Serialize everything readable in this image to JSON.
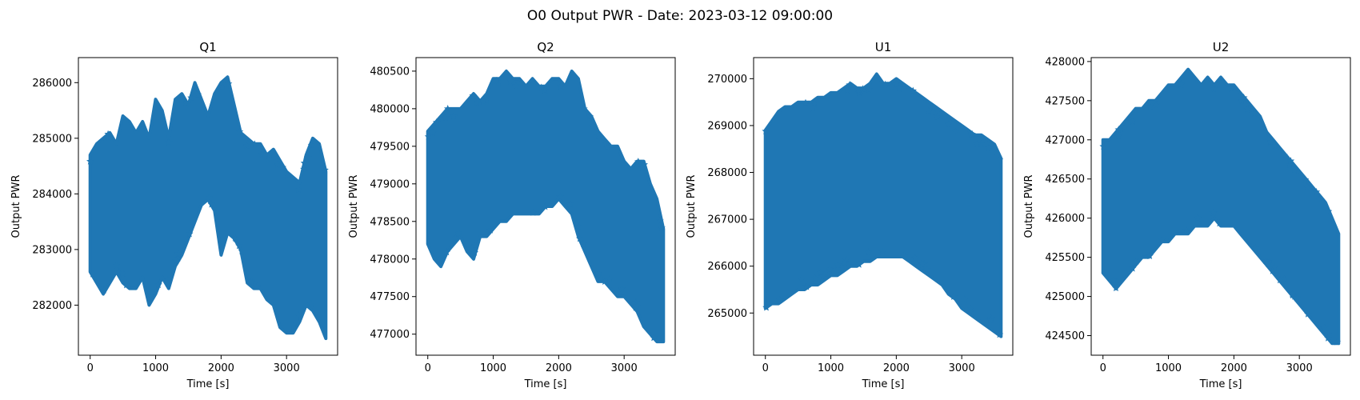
{
  "figure": {
    "title": "O0 Output PWR - Date: 2023-03-12 09:00:00"
  },
  "colors": {
    "series": "#1f77b4",
    "axis": "#000000",
    "background": "#ffffff"
  },
  "chart_data": [
    {
      "type": "scatter",
      "marker": "star",
      "title": "Q1",
      "xlabel": "Time [s]",
      "ylabel": "Output PWR",
      "xlim": [
        -180,
        3780
      ],
      "ylim": [
        281100,
        286450
      ],
      "xticks": [
        0,
        1000,
        2000,
        3000
      ],
      "yticks": [
        282000,
        283000,
        284000,
        285000,
        286000
      ],
      "x_range": [
        0,
        3600
      ],
      "envelope": {
        "x": [
          0,
          100,
          200,
          300,
          400,
          500,
          600,
          700,
          800,
          900,
          1000,
          1100,
          1200,
          1300,
          1400,
          1500,
          1600,
          1700,
          1800,
          1900,
          2000,
          2100,
          2200,
          2300,
          2400,
          2500,
          2600,
          2700,
          2800,
          2900,
          3000,
          3100,
          3200,
          3300,
          3400,
          3500,
          3600
        ],
        "upper": [
          284700,
          284900,
          285000,
          285100,
          284900,
          285400,
          285300,
          285100,
          285300,
          285000,
          285700,
          285500,
          285000,
          285700,
          285800,
          285600,
          286000,
          285700,
          285400,
          285800,
          286000,
          286100,
          285600,
          285100,
          285000,
          284900,
          284900,
          284700,
          284800,
          284600,
          284400,
          284300,
          284200,
          284700,
          285000,
          284900,
          284400
        ],
        "lower": [
          282600,
          282400,
          282200,
          282400,
          282600,
          282400,
          282300,
          282300,
          282500,
          282000,
          282200,
          282500,
          282300,
          282700,
          282900,
          283200,
          283500,
          283800,
          283900,
          283700,
          282900,
          283300,
          283200,
          283000,
          282400,
          282300,
          282300,
          282100,
          282000,
          281600,
          281500,
          281500,
          281700,
          282000,
          281900,
          281700,
          281400
        ]
      }
    },
    {
      "type": "scatter",
      "marker": "star",
      "title": "Q2",
      "xlabel": "Time [s]",
      "ylabel": "Output PWR",
      "xlim": [
        -180,
        3780
      ],
      "ylim": [
        476720,
        480680
      ],
      "xticks": [
        0,
        1000,
        2000,
        3000
      ],
      "yticks": [
        477000,
        477500,
        478000,
        478500,
        479000,
        479500,
        480000,
        480500
      ],
      "x_range": [
        0,
        3600
      ],
      "envelope": {
        "x": [
          0,
          100,
          200,
          300,
          400,
          500,
          600,
          700,
          800,
          900,
          1000,
          1100,
          1200,
          1300,
          1400,
          1500,
          1600,
          1700,
          1800,
          1900,
          2000,
          2100,
          2200,
          2300,
          2400,
          2500,
          2600,
          2700,
          2800,
          2900,
          3000,
          3100,
          3200,
          3300,
          3400,
          3500,
          3600
        ],
        "upper": [
          479700,
          479800,
          479900,
          480000,
          480000,
          480000,
          480100,
          480200,
          480100,
          480200,
          480400,
          480400,
          480500,
          480400,
          480400,
          480300,
          480400,
          480300,
          480300,
          480400,
          480400,
          480300,
          480500,
          480400,
          480000,
          479900,
          479700,
          479600,
          479500,
          479500,
          479300,
          479200,
          479300,
          479300,
          479000,
          478800,
          478400
        ],
        "lower": [
          478200,
          478000,
          477900,
          478100,
          478200,
          478300,
          478100,
          478000,
          478300,
          478300,
          478400,
          478500,
          478500,
          478600,
          478600,
          478600,
          478600,
          478600,
          478700,
          478700,
          478800,
          478700,
          478600,
          478300,
          478100,
          477900,
          477700,
          477700,
          477600,
          477500,
          477500,
          477400,
          477300,
          477100,
          477000,
          476900,
          476900
        ]
      }
    },
    {
      "type": "scatter",
      "marker": "star",
      "title": "U1",
      "xlabel": "Time [s]",
      "ylabel": "Output PWR",
      "xlim": [
        -180,
        3780
      ],
      "ylim": [
        264100,
        270450
      ],
      "xticks": [
        0,
        1000,
        2000,
        3000
      ],
      "yticks": [
        265000,
        266000,
        267000,
        268000,
        269000,
        270000
      ],
      "x_range": [
        0,
        3600
      ],
      "envelope": {
        "x": [
          0,
          100,
          200,
          300,
          400,
          500,
          600,
          700,
          800,
          900,
          1000,
          1100,
          1200,
          1300,
          1400,
          1500,
          1600,
          1700,
          1800,
          1900,
          2000,
          2100,
          2200,
          2300,
          2400,
          2500,
          2600,
          2700,
          2800,
          2900,
          3000,
          3100,
          3200,
          3300,
          3400,
          3500,
          3600
        ],
        "upper": [
          268900,
          269100,
          269300,
          269400,
          269400,
          269500,
          269500,
          269500,
          269600,
          269600,
          269700,
          269700,
          269800,
          269900,
          269800,
          269800,
          269900,
          270100,
          269900,
          269900,
          270000,
          269900,
          269800,
          269700,
          269600,
          269500,
          269400,
          269300,
          269200,
          269100,
          269000,
          268900,
          268800,
          268800,
          268700,
          268600,
          268300
        ],
        "lower": [
          265100,
          265200,
          265200,
          265300,
          265400,
          265500,
          265500,
          265600,
          265600,
          265700,
          265800,
          265800,
          265900,
          266000,
          266000,
          266100,
          266100,
          266200,
          266200,
          266200,
          266200,
          266200,
          266100,
          266000,
          265900,
          265800,
          265700,
          265600,
          265400,
          265300,
          265100,
          265000,
          264900,
          264800,
          264700,
          264600,
          264500
        ]
      }
    },
    {
      "type": "scatter",
      "marker": "star",
      "title": "U2",
      "xlabel": "Time [s]",
      "ylabel": "Output PWR",
      "xlim": [
        -180,
        3780
      ],
      "ylim": [
        424250,
        428050
      ],
      "xticks": [
        0,
        1000,
        2000,
        3000
      ],
      "yticks": [
        424500,
        425000,
        425500,
        426000,
        426500,
        427000,
        427500,
        428000
      ],
      "x_range": [
        0,
        3600
      ],
      "envelope": {
        "x": [
          0,
          100,
          200,
          300,
          400,
          500,
          600,
          700,
          800,
          900,
          1000,
          1100,
          1200,
          1300,
          1400,
          1500,
          1600,
          1700,
          1800,
          1900,
          2000,
          2100,
          2200,
          2300,
          2400,
          2500,
          2600,
          2700,
          2800,
          2900,
          3000,
          3100,
          3200,
          3300,
          3400,
          3500,
          3600
        ],
        "upper": [
          427000,
          427000,
          427100,
          427200,
          427300,
          427400,
          427400,
          427500,
          427500,
          427600,
          427700,
          427700,
          427800,
          427900,
          427800,
          427700,
          427800,
          427700,
          427800,
          427700,
          427700,
          427600,
          427500,
          427400,
          427300,
          427100,
          427000,
          426900,
          426800,
          426700,
          426600,
          426500,
          426400,
          426300,
          426200,
          426000,
          425800
        ],
        "lower": [
          425300,
          425200,
          425100,
          425200,
          425300,
          425400,
          425500,
          425500,
          425600,
          425700,
          425700,
          425800,
          425800,
          425800,
          425900,
          425900,
          425900,
          426000,
          425900,
          425900,
          425900,
          425800,
          425700,
          425600,
          425500,
          425400,
          425300,
          425200,
          425100,
          425000,
          424900,
          424800,
          424700,
          424600,
          424500,
          424400,
          424400
        ]
      }
    }
  ]
}
